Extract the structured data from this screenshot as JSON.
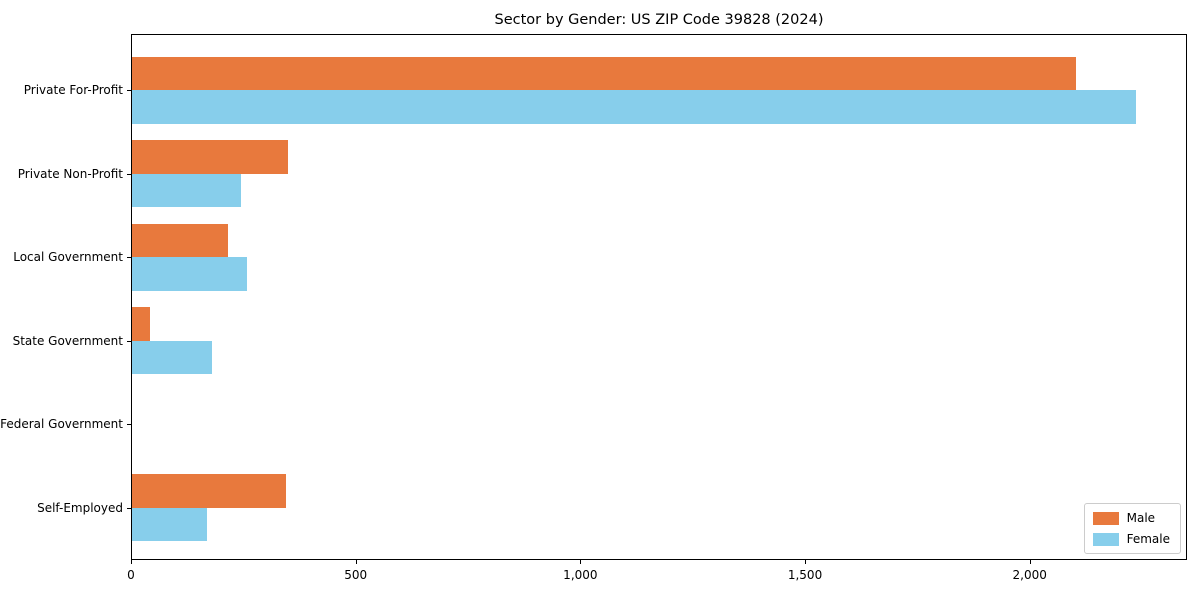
{
  "chart_data": {
    "type": "bar",
    "orientation": "horizontal",
    "title": "Sector by Gender: US ZIP Code 39828 (2024)",
    "categories": [
      "Private For-Profit",
      "Private Non-Profit",
      "Local Government",
      "State Government",
      "Federal Government",
      "Self-Employed"
    ],
    "series": [
      {
        "name": "Male",
        "color": "#E8793D",
        "values": [
          2100,
          348,
          213,
          40,
          0,
          342
        ]
      },
      {
        "name": "Female",
        "color": "#87CEEB",
        "values": [
          2234,
          242,
          255,
          177,
          0,
          166
        ]
      }
    ],
    "xlabel": "",
    "ylabel": "",
    "xlim": [
      0,
      2350
    ],
    "xticks": [
      0,
      500,
      1000,
      1500,
      2000
    ],
    "xtick_labels": [
      "0",
      "500",
      "1,000",
      "1,500",
      "2,000"
    ],
    "grid": false,
    "legend_position": "lower right",
    "axes_edge_color": "#000000"
  }
}
